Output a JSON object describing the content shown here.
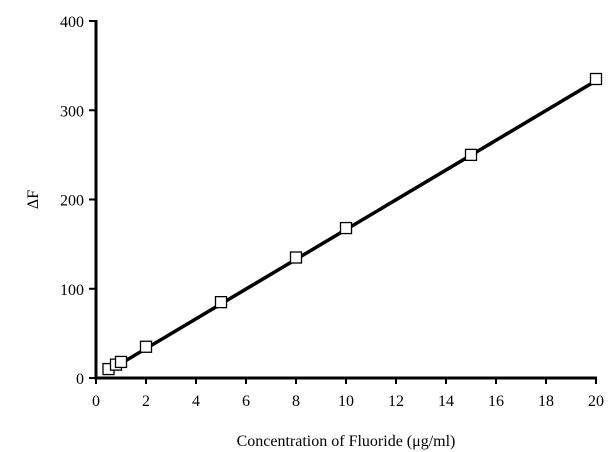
{
  "chart_data": {
    "type": "scatter",
    "title": "",
    "xlabel": "Concentration of Fluoride (μg/ml)",
    "ylabel": "ΔF",
    "xlim": [
      0,
      20
    ],
    "ylim": [
      0,
      400
    ],
    "x_ticks": [
      "0",
      "2",
      "4",
      "6",
      "8",
      "10",
      "12",
      "14",
      "16",
      "18",
      "20"
    ],
    "y_ticks": [
      "0",
      "100",
      "200",
      "300",
      "400"
    ],
    "grid": false,
    "legend": "none",
    "series": [
      {
        "marker": "open-square",
        "x": [
          0.5,
          0.8,
          1,
          2,
          5,
          8,
          10,
          15,
          20
        ],
        "y": [
          10,
          15,
          18,
          35,
          85,
          135,
          168,
          250,
          335
        ]
      }
    ],
    "fit_line": {
      "x": [
        0.5,
        20
      ],
      "y": [
        8,
        333
      ]
    }
  }
}
